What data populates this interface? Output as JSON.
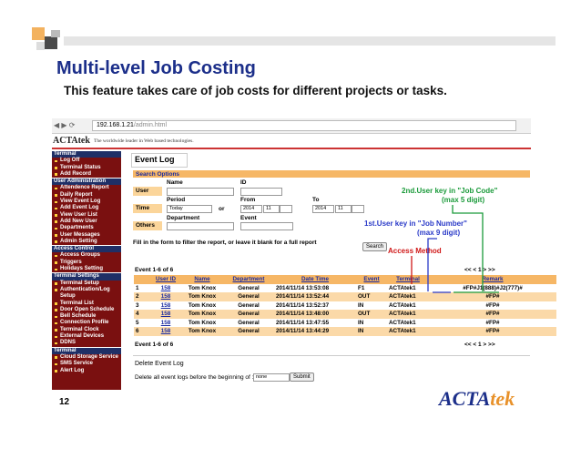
{
  "slide": {
    "title": "Multi-level Job Costing",
    "subtitle": "This feature takes care of job costs for different projects or tasks.",
    "page_number": "12",
    "logo": {
      "part1": "ACTA",
      "part2": "tek"
    }
  },
  "browser": {
    "url_host": "192.168.1.21",
    "url_path": "/admin.html"
  },
  "app_header": {
    "brand": "ACTAtek",
    "tagline": "The worldwide leader in Web based technologies."
  },
  "sidebar": [
    {
      "heading": "Terminal",
      "items": [
        "Log Off",
        "Terminal Status",
        "Add Record"
      ]
    },
    {
      "heading": "User Administration",
      "items": [
        "Attendence Report",
        "Daily Report",
        "View Event Log",
        "Add Event Log",
        "View User List",
        "Add New User",
        "Departments",
        "User Messages",
        "Admin Setting"
      ]
    },
    {
      "heading": "Access Control",
      "items": [
        "Access Groups",
        "Triggers",
        "Holidays Setting"
      ]
    },
    {
      "heading": "Terminal Settings",
      "items": [
        "Terminal Setup",
        "Authentication/Log Setup",
        "Terminal List",
        "Door Open Schedule",
        "Bell Schedule",
        "Connection Profile",
        "Terminal Clock",
        "External Devices",
        "DDNS"
      ]
    },
    {
      "heading": "Terminal",
      "items": [
        "Cloud Storage Service",
        "SMS Service",
        "Alert Log"
      ]
    }
  ],
  "event_log": {
    "heading": "Event Log",
    "search_options": "Search Options",
    "labels": {
      "name": "Name",
      "id": "ID",
      "user": "User",
      "period": "Period",
      "from": "From",
      "to": "To",
      "time": "Time",
      "or": "or",
      "department": "Department",
      "event": "Event",
      "others": "Others"
    },
    "time_select": "Today",
    "from_year": "2014",
    "from_month": "11",
    "to_year": "2014",
    "to_month": "11",
    "instruction": "Fill in the form to filter the report, or leave it blank for a full report",
    "search_button": "Search",
    "count_top": "Event 1-6 of 6",
    "pager_top": "<< < 1 > >>",
    "columns": [
      "",
      "User ID",
      "Name",
      "Department",
      "Date Time",
      "Event",
      "Terminal",
      "Remark"
    ],
    "rows": [
      [
        "1",
        "158",
        "Tom Knox",
        "General",
        "2014/11/14 13:53:08",
        "F1",
        "ACTAtek1",
        "#FP#J1(888)#J2(777)#"
      ],
      [
        "2",
        "158",
        "Tom Knox",
        "General",
        "2014/11/14 13:52:44",
        "OUT",
        "ACTAtek1",
        "#FP#"
      ],
      [
        "3",
        "158",
        "Tom Knox",
        "General",
        "2014/11/14 13:52:37",
        "IN",
        "ACTAtek1",
        "#FP#"
      ],
      [
        "4",
        "158",
        "Tom Knox",
        "General",
        "2014/11/14 13:48:00",
        "OUT",
        "ACTAtek1",
        "#FP#"
      ],
      [
        "5",
        "158",
        "Tom Knox",
        "General",
        "2014/11/14 13:47:55",
        "IN",
        "ACTAtek1",
        "#FP#"
      ],
      [
        "6",
        "158",
        "Tom Knox",
        "General",
        "2014/11/14 13:44:29",
        "IN",
        "ACTAtek1",
        "#FP#"
      ]
    ],
    "count_bottom": "Event 1-6 of 6",
    "pager_bottom": "<< < 1 > >>",
    "delete_heading": "Delete Event Log",
    "delete_text": "Delete all event logs before the beginning of :",
    "delete_select": "none",
    "submit_button": "Submit"
  },
  "annotations": {
    "job_code_1": "2nd.User key in \"Job Code\"",
    "job_code_2": "(max 5 digit)",
    "job_number_1": "1st.User key in \"Job Number\"",
    "job_number_2": "(max 9 digit)",
    "access_method": "Access Method"
  }
}
